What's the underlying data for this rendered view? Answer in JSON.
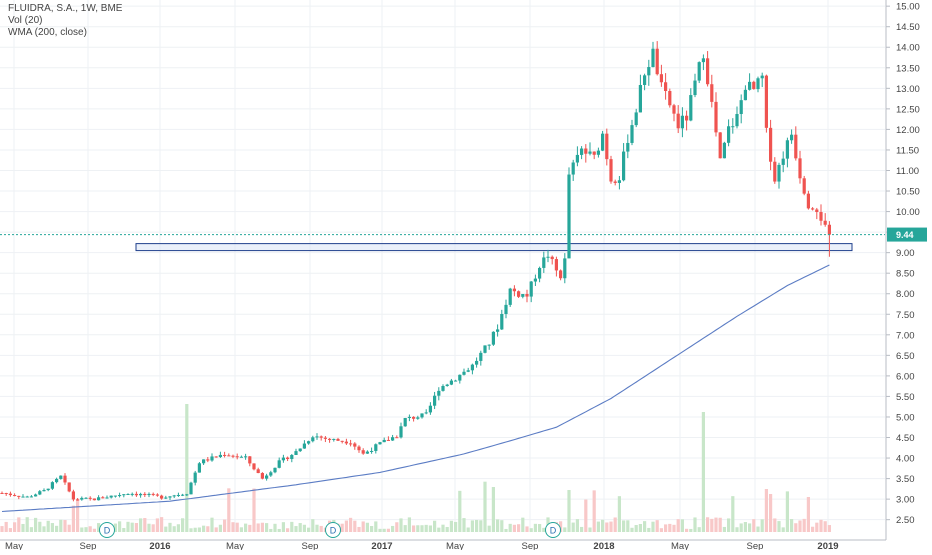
{
  "header": {
    "symbol_line": "FLUIDRA, S.A., 1W, BME",
    "volume_line": "Vol (20)",
    "indicator_line": "WMA (200, close)"
  },
  "colors": {
    "up": "#26a69a",
    "down": "#ef5350",
    "wma": "#5b7cc4",
    "volume_up": "#c8e6c9",
    "volume_down": "#f8c8c8",
    "grid": "#eef1f4",
    "zone_fill": "#dce6f7",
    "zone_stroke": "#1f3f8c",
    "last_price": "#26a69a"
  },
  "chart_data": {
    "type": "candlestick",
    "timeframe": "1W",
    "exchange": "BME",
    "price_axis": {
      "range": [
        2.2,
        15.15
      ],
      "ticks": [
        "2.50",
        "3.00",
        "3.50",
        "4.00",
        "4.50",
        "5.00",
        "5.50",
        "6.00",
        "6.50",
        "7.00",
        "7.50",
        "8.00",
        "8.50",
        "9.00",
        "9.50",
        "10.00",
        "10.50",
        "11.00",
        "11.50",
        "12.00",
        "12.50",
        "13.00",
        "13.50",
        "14.00",
        "14.50",
        "15.00"
      ]
    },
    "time_axis": {
      "labels": [
        {
          "text": "May",
          "bold": false
        },
        {
          "text": "Sep",
          "bold": false
        },
        {
          "text": "2016",
          "bold": true
        },
        {
          "text": "May",
          "bold": false
        },
        {
          "text": "Sep",
          "bold": false
        },
        {
          "text": "2017",
          "bold": true
        },
        {
          "text": "May",
          "bold": false
        },
        {
          "text": "Sep",
          "bold": false
        },
        {
          "text": "2018",
          "bold": true
        },
        {
          "text": "May",
          "bold": false
        },
        {
          "text": "Sep",
          "bold": false
        },
        {
          "text": "2019",
          "bold": true
        }
      ]
    },
    "anchors": [
      {
        "w": 0,
        "p": 3.15
      },
      {
        "w": 6,
        "p": 3.05
      },
      {
        "w": 10,
        "p": 3.2
      },
      {
        "w": 14,
        "p": 3.55
      },
      {
        "w": 17,
        "p": 3.0
      },
      {
        "w": 22,
        "p": 3.0
      },
      {
        "w": 30,
        "p": 3.15
      },
      {
        "w": 38,
        "p": 3.05
      },
      {
        "w": 44,
        "p": 3.15
      },
      {
        "w": 47,
        "p": 3.9
      },
      {
        "w": 53,
        "p": 4.1
      },
      {
        "w": 58,
        "p": 4.0
      },
      {
        "w": 62,
        "p": 3.5
      },
      {
        "w": 66,
        "p": 3.9
      },
      {
        "w": 70,
        "p": 4.15
      },
      {
        "w": 74,
        "p": 4.55
      },
      {
        "w": 78,
        "p": 4.45
      },
      {
        "w": 83,
        "p": 4.4
      },
      {
        "w": 86,
        "p": 4.1
      },
      {
        "w": 90,
        "p": 4.35
      },
      {
        "w": 94,
        "p": 4.55
      },
      {
        "w": 96,
        "p": 4.95
      },
      {
        "w": 101,
        "p": 5.05
      },
      {
        "w": 104,
        "p": 5.7
      },
      {
        "w": 108,
        "p": 5.95
      },
      {
        "w": 112,
        "p": 6.25
      },
      {
        "w": 116,
        "p": 6.8
      },
      {
        "w": 118,
        "p": 7.2
      },
      {
        "w": 121,
        "p": 8.1
      },
      {
        "w": 123,
        "p": 8.0
      },
      {
        "w": 125,
        "p": 7.95
      },
      {
        "w": 128,
        "p": 8.7
      },
      {
        "w": 130,
        "p": 8.95
      },
      {
        "w": 132,
        "p": 8.55
      },
      {
        "w": 133,
        "p": 8.45
      },
      {
        "w": 134,
        "p": 8.8
      },
      {
        "w": 135,
        "p": 10.9
      },
      {
        "w": 138,
        "p": 11.5
      },
      {
        "w": 141,
        "p": 11.3
      },
      {
        "w": 143,
        "p": 11.9
      },
      {
        "w": 145,
        "p": 10.8
      },
      {
        "w": 147,
        "p": 10.85
      },
      {
        "w": 149,
        "p": 11.8
      },
      {
        "w": 151,
        "p": 12.5
      },
      {
        "w": 153,
        "p": 13.4
      },
      {
        "w": 155,
        "p": 13.85
      },
      {
        "w": 157,
        "p": 13.0
      },
      {
        "w": 159,
        "p": 12.6
      },
      {
        "w": 161,
        "p": 12.1
      },
      {
        "w": 163,
        "p": 12.3
      },
      {
        "w": 165,
        "p": 13.1
      },
      {
        "w": 167,
        "p": 13.9
      },
      {
        "w": 169,
        "p": 12.6
      },
      {
        "w": 171,
        "p": 11.2
      },
      {
        "w": 173,
        "p": 12.0
      },
      {
        "w": 175,
        "p": 12.3
      },
      {
        "w": 177,
        "p": 13.1
      },
      {
        "w": 179,
        "p": 12.95
      },
      {
        "w": 181,
        "p": 13.25
      },
      {
        "w": 182,
        "p": 11.9
      },
      {
        "w": 184,
        "p": 10.8
      },
      {
        "w": 186,
        "p": 11.4
      },
      {
        "w": 188,
        "p": 11.9
      },
      {
        "w": 190,
        "p": 10.9
      },
      {
        "w": 192,
        "p": 10.2
      },
      {
        "w": 194,
        "p": 10.1
      },
      {
        "w": 196,
        "p": 9.6
      },
      {
        "w": 197,
        "p": 9.44
      }
    ],
    "wma_200": [
      {
        "w": 0,
        "p": 2.7
      },
      {
        "w": 40,
        "p": 2.95
      },
      {
        "w": 70,
        "p": 3.35
      },
      {
        "w": 90,
        "p": 3.65
      },
      {
        "w": 110,
        "p": 4.1
      },
      {
        "w": 122,
        "p": 4.45
      },
      {
        "w": 132,
        "p": 4.75
      },
      {
        "w": 145,
        "p": 5.45
      },
      {
        "w": 160,
        "p": 6.45
      },
      {
        "w": 175,
        "p": 7.45
      },
      {
        "w": 187,
        "p": 8.2
      },
      {
        "w": 197,
        "p": 8.7
      }
    ],
    "support_zone": {
      "low": 9.05,
      "high": 9.22
    },
    "last_price": "9.44",
    "dividend_markers": [
      "D",
      "D",
      "D"
    ]
  }
}
